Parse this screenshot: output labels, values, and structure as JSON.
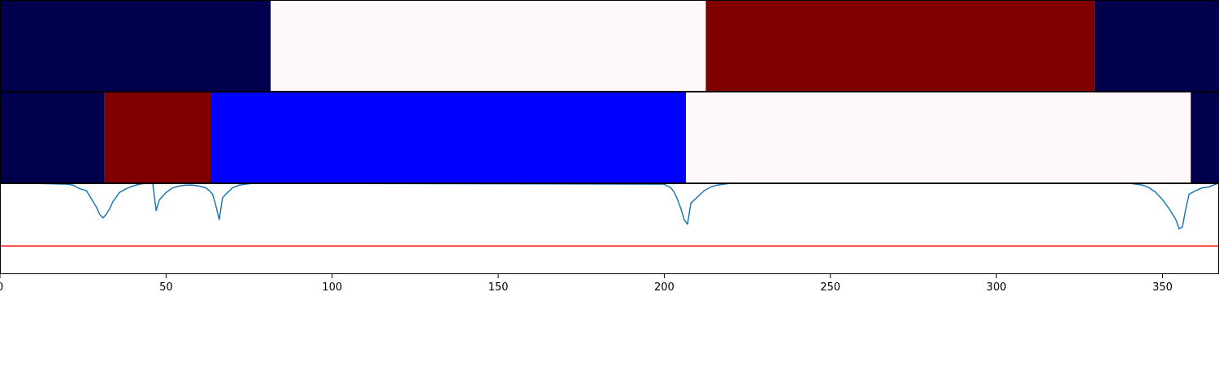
{
  "chart_data": [
    {
      "type": "heatmap",
      "title": "",
      "xlim": [
        0,
        367
      ],
      "segments": [
        {
          "start": 0,
          "end": 81.5,
          "color": "#00004c"
        },
        {
          "start": 81.5,
          "end": 212.5,
          "color": "#fff8f8"
        },
        {
          "start": 212.5,
          "end": 329.5,
          "color": "#800000"
        },
        {
          "start": 329.5,
          "end": 367,
          "color": "#00004c"
        }
      ]
    },
    {
      "type": "heatmap",
      "title": "",
      "xlim": [
        0,
        367
      ],
      "segments": [
        {
          "start": 0,
          "end": 31.5,
          "color": "#00004c"
        },
        {
          "start": 31.5,
          "end": 63.5,
          "color": "#800000"
        },
        {
          "start": 63.5,
          "end": 206.5,
          "color": "#0000ff"
        },
        {
          "start": 206.5,
          "end": 358.5,
          "color": "#fff8f8"
        },
        {
          "start": 358.5,
          "end": 367,
          "color": "#00004c"
        }
      ]
    },
    {
      "type": "line",
      "title": "",
      "xlabel": "",
      "ylabel": "",
      "xlim": [
        0,
        367
      ],
      "ylim": [
        0,
        1
      ],
      "x_ticks": [
        0,
        50,
        100,
        150,
        200,
        250,
        300,
        350
      ],
      "grid": false,
      "series": [
        {
          "color": "#1f77b4",
          "x": [
            0,
            10,
            20,
            22,
            23,
            24,
            26,
            27,
            28,
            29,
            30,
            31,
            32,
            33,
            34,
            35,
            36,
            38,
            40,
            42,
            44,
            46,
            47,
            48,
            50,
            52,
            54,
            56,
            58,
            60,
            62,
            63,
            64,
            65,
            66,
            67,
            68,
            70,
            72,
            76,
            80,
            84,
            86,
            200,
            202,
            203,
            204,
            205,
            206,
            207,
            208,
            210,
            212,
            214,
            216,
            220,
            340,
            344,
            346,
            348,
            350,
            352,
            354,
            355,
            356,
            357,
            358,
            359,
            360,
            362,
            364,
            366,
            367
          ],
          "values": [
            1.0,
            1.0,
            0.99,
            0.98,
            0.96,
            0.94,
            0.92,
            0.86,
            0.8,
            0.74,
            0.66,
            0.62,
            0.66,
            0.72,
            0.8,
            0.85,
            0.9,
            0.94,
            0.97,
            0.99,
            1.0,
            1.0,
            0.7,
            0.82,
            0.9,
            0.95,
            0.97,
            0.98,
            0.98,
            0.97,
            0.95,
            0.92,
            0.88,
            0.75,
            0.6,
            0.84,
            0.88,
            0.95,
            0.98,
            1.0,
            1.0,
            1.0,
            1.0,
            0.99,
            0.95,
            0.9,
            0.82,
            0.72,
            0.6,
            0.55,
            0.78,
            0.85,
            0.92,
            0.96,
            0.98,
            1.0,
            1.0,
            0.98,
            0.95,
            0.9,
            0.82,
            0.72,
            0.6,
            0.5,
            0.52,
            0.72,
            0.88,
            0.9,
            0.92,
            0.95,
            0.96,
            0.99,
            1.0
          ]
        },
        {
          "color": "#ff0000",
          "x": [
            0,
            367
          ],
          "values": [
            0.31,
            0.31
          ]
        }
      ]
    }
  ]
}
